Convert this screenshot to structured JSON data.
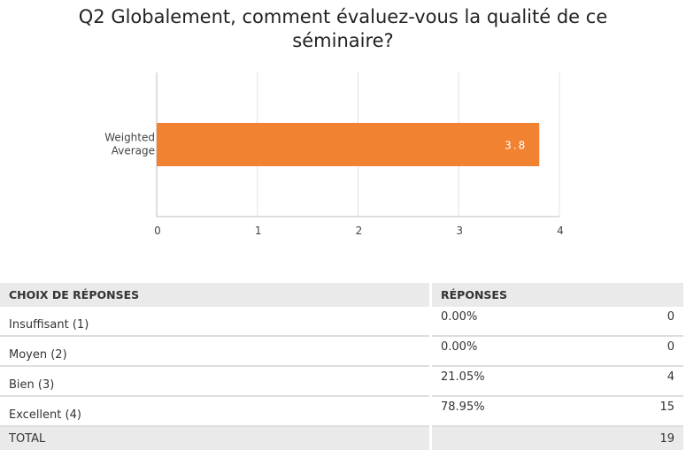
{
  "question": {
    "line1": "Q2 Globalement, comment évaluez-vous la qualité de ce",
    "line2": "séminaire?"
  },
  "colors": {
    "bar": "#f08232",
    "bar_label": "#ffffff",
    "grid": "#e3e3e3",
    "axis": "#bfbfbf"
  },
  "chart_data": {
    "type": "bar",
    "orientation": "horizontal",
    "categories": [
      "Weighted Average"
    ],
    "category_lines": [
      "Weighted",
      "Average"
    ],
    "values": [
      3.8
    ],
    "data_labels": [
      "3.8"
    ],
    "xlim": [
      0,
      4
    ],
    "xticks": [
      0,
      1,
      2,
      3,
      4
    ],
    "grid": true,
    "title": "",
    "xlabel": "",
    "ylabel": ""
  },
  "table": {
    "headers": {
      "choice": "CHOIX DE RÉPONSES",
      "responses": "RÉPONSES"
    },
    "rows": [
      {
        "label": "Insuffisant (1)",
        "pct": "0.00%",
        "count": "0"
      },
      {
        "label": "Moyen (2)",
        "pct": "0.00%",
        "count": "0"
      },
      {
        "label": "Bien (3)",
        "pct": "21.05%",
        "count": "4"
      },
      {
        "label": "Excellent (4)",
        "pct": "78.95%",
        "count": "15"
      }
    ],
    "total": {
      "label": "TOTAL",
      "count": "19"
    }
  }
}
